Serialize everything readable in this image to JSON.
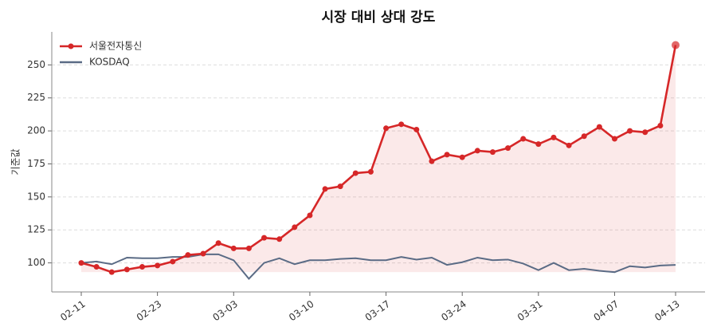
{
  "chart_data": {
    "type": "line",
    "title": "시장 대비 상대 강도",
    "ylabel": "기준값",
    "categories": [
      "02-11",
      null,
      null,
      null,
      null,
      "02-23",
      null,
      null,
      null,
      null,
      "03-03",
      null,
      null,
      null,
      null,
      "03-10",
      null,
      null,
      null,
      null,
      "03-17",
      null,
      null,
      null,
      null,
      "03-24",
      null,
      null,
      null,
      null,
      "03-31",
      null,
      null,
      null,
      null,
      "04-07",
      null,
      null,
      null,
      "04-13"
    ],
    "series": [
      {
        "name": "서울전자통신",
        "color": "#d62728",
        "values": [
          100,
          97,
          93,
          95,
          97,
          98,
          101,
          106,
          107,
          115,
          111,
          111,
          119,
          118,
          127,
          136,
          156,
          158,
          168,
          169,
          202,
          205,
          201,
          177,
          182,
          180,
          185,
          184,
          187,
          194,
          190,
          195,
          189,
          196,
          203,
          194,
          200,
          199,
          204,
          265
        ]
      },
      {
        "name": "KOSDAQ",
        "color": "#5a6b85",
        "values": [
          100,
          101,
          99,
          104,
          103.5,
          103.5,
          104.5,
          104.5,
          106.5,
          106.5,
          102,
          88,
          100,
          103.5,
          99,
          102,
          102,
          103,
          103.5,
          102,
          102,
          104.5,
          102.5,
          104,
          98.5,
          100.5,
          104,
          102,
          102.5,
          99.5,
          94.5,
          100,
          94.5,
          95.5,
          94,
          93,
          97.5,
          96.5,
          98,
          98.5
        ]
      }
    ],
    "ylim": [
      78,
      275
    ],
    "yticks": [
      100,
      125,
      150,
      175,
      200,
      225,
      250
    ],
    "grid": true,
    "legend": "upper left"
  }
}
